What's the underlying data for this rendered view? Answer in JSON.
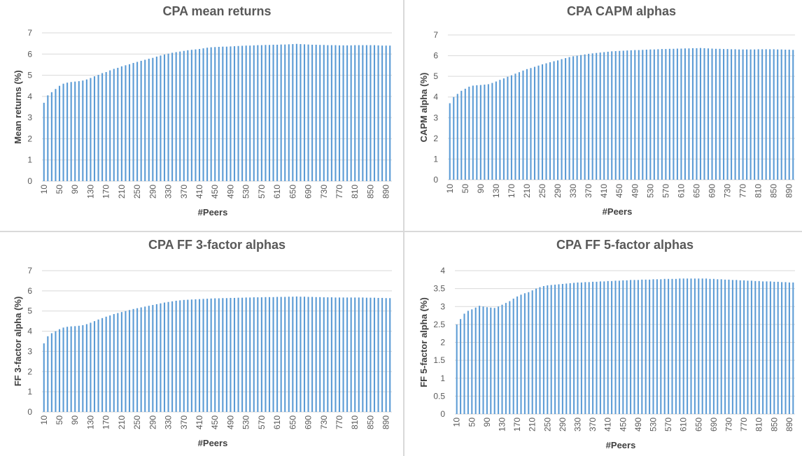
{
  "colors": {
    "bar": "#5b9bd5",
    "grid": "#d9d9d9",
    "text": "#595959"
  },
  "chart_data": [
    {
      "type": "bar",
      "title": "CPA mean returns",
      "xlabel": "#Peers",
      "ylabel": "Mean returns (%)",
      "ylim": [
        0,
        7
      ],
      "yticks": [
        "0",
        "1",
        "2",
        "3",
        "4",
        "5",
        "6",
        "7"
      ],
      "xtick_labels": [
        "10",
        "50",
        "90",
        "130",
        "170",
        "210",
        "250",
        "290",
        "330",
        "370",
        "410",
        "450",
        "490",
        "530",
        "570",
        "610",
        "650",
        "690",
        "730",
        "770",
        "810",
        "850",
        "890"
      ],
      "grid": true,
      "start": 10,
      "step": 10,
      "count": 90,
      "x": [
        10,
        20,
        30,
        40,
        50,
        60,
        70,
        80,
        90,
        100,
        110,
        120,
        130,
        140,
        150,
        160,
        170,
        180,
        190,
        200,
        210,
        220,
        230,
        240,
        250,
        260,
        270,
        280,
        290,
        300,
        310,
        320,
        330,
        340,
        350,
        360,
        370,
        380,
        390,
        400,
        410,
        420,
        430,
        440,
        450,
        460,
        470,
        480,
        490,
        500,
        510,
        520,
        530,
        540,
        550,
        560,
        570,
        580,
        590,
        600,
        610,
        620,
        630,
        640,
        650,
        660,
        670,
        680,
        690,
        700,
        710,
        720,
        730,
        740,
        750,
        760,
        770,
        780,
        790,
        800,
        810,
        820,
        830,
        840,
        850,
        860,
        870,
        880,
        890,
        900
      ],
      "values": [
        3.7,
        4.05,
        4.2,
        4.35,
        4.5,
        4.6,
        4.65,
        4.68,
        4.7,
        4.72,
        4.75,
        4.8,
        4.87,
        4.95,
        5.02,
        5.1,
        5.15,
        5.23,
        5.3,
        5.35,
        5.42,
        5.47,
        5.52,
        5.58,
        5.63,
        5.68,
        5.73,
        5.78,
        5.82,
        5.88,
        5.93,
        5.98,
        6.02,
        6.06,
        6.09,
        6.12,
        6.15,
        6.18,
        6.2,
        6.22,
        6.24,
        6.27,
        6.3,
        6.32,
        6.33,
        6.34,
        6.35,
        6.35,
        6.36,
        6.37,
        6.38,
        6.39,
        6.4,
        6.4,
        6.41,
        6.42,
        6.42,
        6.43,
        6.43,
        6.44,
        6.44,
        6.45,
        6.45,
        6.46,
        6.47,
        6.48,
        6.47,
        6.46,
        6.45,
        6.44,
        6.44,
        6.43,
        6.43,
        6.42,
        6.42,
        6.42,
        6.41,
        6.41,
        6.41,
        6.41,
        6.42,
        6.42,
        6.42,
        6.42,
        6.42,
        6.42,
        6.41,
        6.4,
        6.4,
        6.4
      ]
    },
    {
      "type": "bar",
      "title": "CPA CAPM alphas",
      "xlabel": "#Peers",
      "ylabel": "CAPM alpha (%)",
      "ylim": [
        0,
        7
      ],
      "yticks": [
        "0",
        "1",
        "2",
        "3",
        "4",
        "5",
        "6",
        "7"
      ],
      "xtick_labels": [
        "10",
        "50",
        "90",
        "130",
        "170",
        "210",
        "250",
        "290",
        "330",
        "370",
        "410",
        "450",
        "490",
        "530",
        "570",
        "610",
        "650",
        "690",
        "730",
        "770",
        "810",
        "850",
        "890"
      ],
      "grid": true,
      "start": 10,
      "step": 10,
      "count": 90,
      "x": [
        10,
        20,
        30,
        40,
        50,
        60,
        70,
        80,
        90,
        100,
        110,
        120,
        130,
        140,
        150,
        160,
        170,
        180,
        190,
        200,
        210,
        220,
        230,
        240,
        250,
        260,
        270,
        280,
        290,
        300,
        310,
        320,
        330,
        340,
        350,
        360,
        370,
        380,
        390,
        400,
        410,
        420,
        430,
        440,
        450,
        460,
        470,
        480,
        490,
        500,
        510,
        520,
        530,
        540,
        550,
        560,
        570,
        580,
        590,
        600,
        610,
        620,
        630,
        640,
        650,
        660,
        670,
        680,
        690,
        700,
        710,
        720,
        730,
        740,
        750,
        760,
        770,
        780,
        790,
        800,
        810,
        820,
        830,
        840,
        850,
        860,
        870,
        880,
        890,
        900
      ],
      "values": [
        3.7,
        4.0,
        4.15,
        4.3,
        4.4,
        4.5,
        4.55,
        4.57,
        4.58,
        4.6,
        4.62,
        4.68,
        4.75,
        4.83,
        4.9,
        4.98,
        5.05,
        5.13,
        5.2,
        5.28,
        5.35,
        5.4,
        5.46,
        5.52,
        5.58,
        5.63,
        5.68,
        5.73,
        5.77,
        5.83,
        5.88,
        5.93,
        5.97,
        6.0,
        6.03,
        6.06,
        6.09,
        6.11,
        6.13,
        6.15,
        6.17,
        6.19,
        6.21,
        6.22,
        6.23,
        6.24,
        6.25,
        6.26,
        6.27,
        6.27,
        6.28,
        6.29,
        6.3,
        6.3,
        6.31,
        6.32,
        6.32,
        6.33,
        6.33,
        6.34,
        6.34,
        6.35,
        6.35,
        6.36,
        6.36,
        6.37,
        6.36,
        6.35,
        6.34,
        6.33,
        6.33,
        6.32,
        6.32,
        6.31,
        6.31,
        6.3,
        6.3,
        6.3,
        6.3,
        6.3,
        6.31,
        6.31,
        6.31,
        6.31,
        6.31,
        6.3,
        6.3,
        6.29,
        6.29,
        6.28
      ]
    },
    {
      "type": "bar",
      "title": "CPA FF 3-factor alphas",
      "xlabel": "#Peers",
      "ylabel": "FF 3-factor alpha (%)",
      "ylim": [
        0,
        7
      ],
      "yticks": [
        "0",
        "1",
        "2",
        "3",
        "4",
        "5",
        "6",
        "7"
      ],
      "xtick_labels": [
        "10",
        "50",
        "90",
        "130",
        "170",
        "210",
        "250",
        "290",
        "330",
        "370",
        "410",
        "450",
        "490",
        "530",
        "570",
        "610",
        "650",
        "690",
        "730",
        "770",
        "810",
        "850",
        "890"
      ],
      "grid": true,
      "start": 10,
      "step": 10,
      "count": 90,
      "x": [
        10,
        20,
        30,
        40,
        50,
        60,
        70,
        80,
        90,
        100,
        110,
        120,
        130,
        140,
        150,
        160,
        170,
        180,
        190,
        200,
        210,
        220,
        230,
        240,
        250,
        260,
        270,
        280,
        290,
        300,
        310,
        320,
        330,
        340,
        350,
        360,
        370,
        380,
        390,
        400,
        410,
        420,
        430,
        440,
        450,
        460,
        470,
        480,
        490,
        500,
        510,
        520,
        530,
        540,
        550,
        560,
        570,
        580,
        590,
        600,
        610,
        620,
        630,
        640,
        650,
        660,
        670,
        680,
        690,
        700,
        710,
        720,
        730,
        740,
        750,
        760,
        770,
        780,
        790,
        800,
        810,
        820,
        830,
        840,
        850,
        860,
        870,
        880,
        890,
        900
      ],
      "values": [
        3.4,
        3.75,
        3.9,
        4.0,
        4.1,
        4.18,
        4.22,
        4.24,
        4.25,
        4.27,
        4.3,
        4.35,
        4.42,
        4.5,
        4.58,
        4.65,
        4.72,
        4.78,
        4.85,
        4.9,
        4.95,
        5.0,
        5.05,
        5.1,
        5.14,
        5.18,
        5.22,
        5.26,
        5.3,
        5.34,
        5.38,
        5.42,
        5.45,
        5.48,
        5.51,
        5.53,
        5.55,
        5.56,
        5.57,
        5.58,
        5.59,
        5.6,
        5.61,
        5.62,
        5.63,
        5.63,
        5.64,
        5.64,
        5.65,
        5.65,
        5.66,
        5.66,
        5.67,
        5.67,
        5.68,
        5.68,
        5.68,
        5.69,
        5.69,
        5.69,
        5.7,
        5.7,
        5.7,
        5.71,
        5.71,
        5.72,
        5.71,
        5.71,
        5.7,
        5.7,
        5.69,
        5.69,
        5.68,
        5.68,
        5.68,
        5.67,
        5.67,
        5.67,
        5.67,
        5.67,
        5.67,
        5.67,
        5.67,
        5.66,
        5.66,
        5.66,
        5.65,
        5.65,
        5.64,
        5.64
      ]
    },
    {
      "type": "bar",
      "title": "CPA FF 5-factor alphas",
      "xlabel": "#Peers",
      "ylabel": "FF 5-factor alpha (%)",
      "ylim": [
        0,
        4
      ],
      "yticks": [
        "0",
        "0.5",
        "1",
        "1.5",
        "2",
        "2.5",
        "3",
        "3.5",
        "4"
      ],
      "xtick_labels": [
        "10",
        "50",
        "90",
        "130",
        "170",
        "210",
        "250",
        "290",
        "330",
        "370",
        "410",
        "450",
        "490",
        "530",
        "570",
        "610",
        "650",
        "690",
        "730",
        "770",
        "810",
        "850",
        "890"
      ],
      "grid": true,
      "start": 10,
      "step": 10,
      "count": 90,
      "x": [
        10,
        20,
        30,
        40,
        50,
        60,
        70,
        80,
        90,
        100,
        110,
        120,
        130,
        140,
        150,
        160,
        170,
        180,
        190,
        200,
        210,
        220,
        230,
        240,
        250,
        260,
        270,
        280,
        290,
        300,
        310,
        320,
        330,
        340,
        350,
        360,
        370,
        380,
        390,
        400,
        410,
        420,
        430,
        440,
        450,
        460,
        470,
        480,
        490,
        500,
        510,
        520,
        530,
        540,
        550,
        560,
        570,
        580,
        590,
        600,
        610,
        620,
        630,
        640,
        650,
        660,
        670,
        680,
        690,
        700,
        710,
        720,
        730,
        740,
        750,
        760,
        770,
        780,
        790,
        800,
        810,
        820,
        830,
        840,
        850,
        860,
        870,
        880,
        890,
        900
      ],
      "values": [
        2.5,
        2.65,
        2.8,
        2.88,
        2.92,
        2.97,
        3.02,
        3.0,
        2.98,
        2.97,
        2.96,
        3.0,
        3.05,
        3.1,
        3.15,
        3.22,
        3.28,
        3.33,
        3.37,
        3.4,
        3.45,
        3.5,
        3.54,
        3.57,
        3.59,
        3.6,
        3.61,
        3.62,
        3.63,
        3.64,
        3.65,
        3.66,
        3.67,
        3.67,
        3.68,
        3.68,
        3.69,
        3.69,
        3.7,
        3.7,
        3.71,
        3.71,
        3.72,
        3.72,
        3.73,
        3.73,
        3.74,
        3.74,
        3.74,
        3.75,
        3.75,
        3.75,
        3.76,
        3.76,
        3.76,
        3.77,
        3.77,
        3.77,
        3.77,
        3.78,
        3.78,
        3.78,
        3.78,
        3.78,
        3.78,
        3.78,
        3.78,
        3.77,
        3.77,
        3.76,
        3.76,
        3.75,
        3.75,
        3.74,
        3.74,
        3.73,
        3.73,
        3.72,
        3.72,
        3.71,
        3.71,
        3.7,
        3.7,
        3.7,
        3.69,
        3.69,
        3.68,
        3.68,
        3.67,
        3.67
      ]
    }
  ]
}
